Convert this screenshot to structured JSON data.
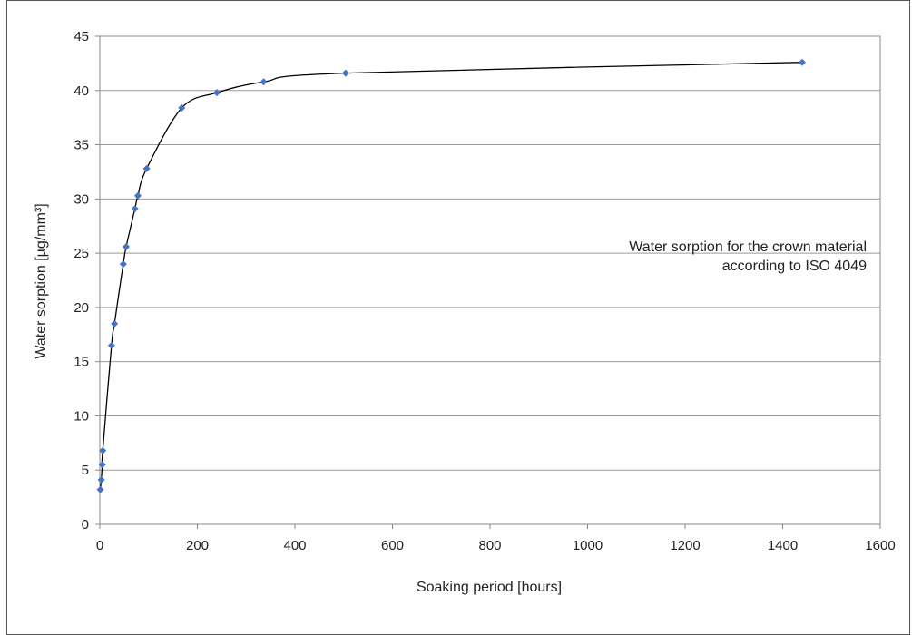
{
  "chart_data": {
    "type": "scatter",
    "xlabel": "Soaking period [hours]",
    "ylabel": "Water sorption [µg/mm³]",
    "annotation": {
      "line1": "Water sorption for the crown material",
      "line2": "according to ISO 4049"
    },
    "xlim": [
      0,
      1600
    ],
    "ylim": [
      0,
      45
    ],
    "xticks": [
      0,
      200,
      400,
      600,
      800,
      1000,
      1200,
      1400,
      1600
    ],
    "yticks": [
      0,
      5,
      10,
      15,
      20,
      25,
      30,
      35,
      40,
      45
    ],
    "grid": "horizontal",
    "marker_color": "#4472c4",
    "line_color": "#000000",
    "series": [
      {
        "x": [
          1,
          3,
          5,
          6,
          24,
          30,
          48,
          54,
          72,
          78,
          96,
          168,
          240,
          336,
          504,
          1440
        ],
        "y": [
          3.2,
          4.1,
          5.5,
          6.8,
          16.5,
          18.5,
          24.0,
          25.6,
          29.1,
          30.3,
          32.8,
          38.4,
          39.8,
          40.8,
          41.6,
          42.6
        ]
      }
    ]
  }
}
